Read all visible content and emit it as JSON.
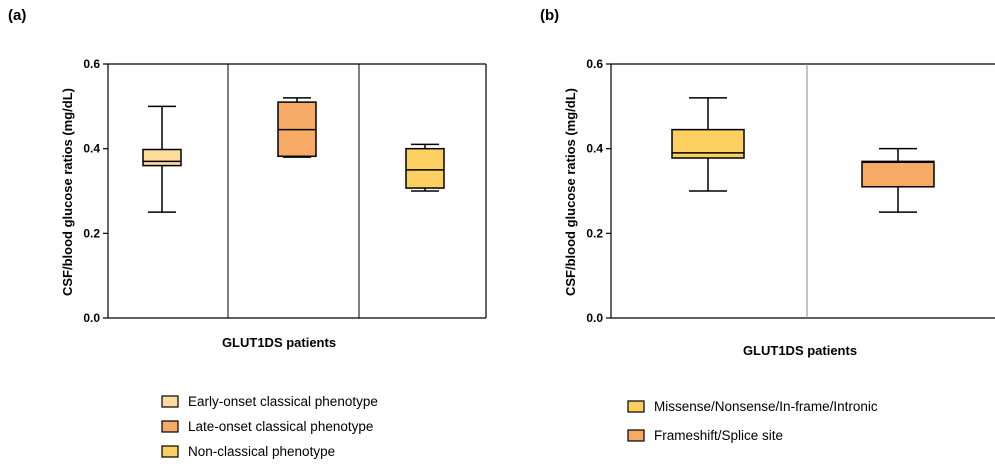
{
  "colors": {
    "early_onset": "#fbdc9c",
    "late_onset": "#f7aa66",
    "non_classical": "#fbcf60",
    "missense": "#fbcf60",
    "frameshift": "#f7aa66",
    "axis": "#000000",
    "divider_a": "#000000",
    "divider_b": "#8a8a8a"
  },
  "chart_data": [
    {
      "type": "box",
      "panel_label": "(a)",
      "title": "",
      "xlabel": "GLUT1DS patients",
      "ylabel": "CSF/blood glucose ratios (mg/dL)",
      "ylim": [
        0,
        0.6
      ],
      "yticks": [
        "0.0",
        "0.2",
        "0.4",
        "0.6"
      ],
      "grid": false,
      "legend_position": "bottom",
      "series": [
        {
          "name": "Early-onset classical phenotype",
          "color_key": "early_onset",
          "min": 0.25,
          "q1": 0.36,
          "median": 0.37,
          "q3": 0.398,
          "max": 0.5
        },
        {
          "name": "Late-onset classical phenotype",
          "color_key": "late_onset",
          "min": 0.38,
          "q1": 0.382,
          "median": 0.445,
          "q3": 0.51,
          "max": 0.52
        },
        {
          "name": "Non-classical phenotype",
          "color_key": "non_classical",
          "min": 0.3,
          "q1": 0.307,
          "median": 0.35,
          "q3": 0.4,
          "max": 0.41
        }
      ]
    },
    {
      "type": "box",
      "panel_label": "(b)",
      "title": "",
      "xlabel": "GLUT1DS patients",
      "ylabel": "CSF/blood glucose ratios (mg/dL)",
      "ylim": [
        0,
        0.6
      ],
      "yticks": [
        "0.0",
        "0.2",
        "0.4",
        "0.6"
      ],
      "grid": false,
      "legend_position": "bottom",
      "series": [
        {
          "name": "Missense/Nonsense/In-frame/Intronic",
          "color_key": "missense",
          "min": 0.3,
          "q1": 0.378,
          "median": 0.39,
          "q3": 0.445,
          "max": 0.52
        },
        {
          "name": "Frameshift/Splice site",
          "color_key": "frameshift",
          "min": 0.25,
          "q1": 0.31,
          "median": 0.368,
          "q3": 0.37,
          "max": 0.4
        }
      ]
    }
  ]
}
